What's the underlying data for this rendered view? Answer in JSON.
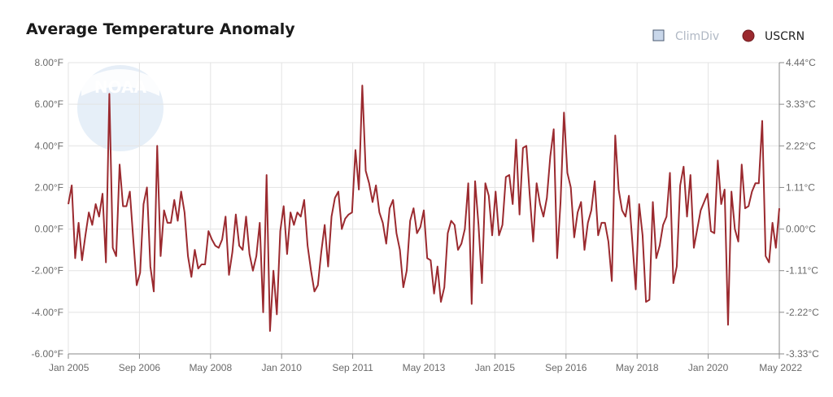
{
  "chart_data": {
    "type": "line",
    "title": "Average Temperature Anomaly",
    "legend": {
      "placement": "top-right",
      "items": [
        {
          "name": "ClimDiv",
          "color": "#c9d7ea",
          "border": "#4a5a70",
          "text_color": "#b0b8c4",
          "marker": "square"
        },
        {
          "name": "USCRN",
          "color": "#9b2a2f",
          "border": "#6e1c20",
          "text_color": "#222222",
          "marker": "circle"
        }
      ]
    },
    "x_ticks": [
      "Jan 2005",
      "Sep 2006",
      "May 2008",
      "Jan 2010",
      "Sep 2011",
      "May 2013",
      "Jan 2015",
      "Sep 2016",
      "May 2018",
      "Jan 2020",
      "May 2022"
    ],
    "x_range_months": [
      0,
      208
    ],
    "y_left": {
      "unit": "°F",
      "ticks": [
        "8.00°F",
        "6.00°F",
        "4.00°F",
        "2.00°F",
        "0.00°F",
        "-2.00°F",
        "-4.00°F",
        "-6.00°F"
      ],
      "range": [
        -6,
        8
      ]
    },
    "y_right": {
      "unit": "°C",
      "ticks": [
        "4.44°C",
        "3.33°C",
        "2.22°C",
        "1.11°C",
        "0.00°C",
        "-1.11°C",
        "-2.22°C",
        "-3.33°C"
      ]
    },
    "grid": true,
    "watermark": "NOAA",
    "series": [
      {
        "name": "USCRN",
        "color": "#9b2a2f",
        "start": "Jan 2005",
        "values": [
          1.2,
          2.1,
          -1.4,
          0.3,
          -1.5,
          -0.3,
          0.8,
          0.2,
          1.2,
          0.6,
          1.7,
          -1.6,
          6.5,
          -0.9,
          -1.3,
          3.1,
          1.1,
          1.1,
          1.8,
          -0.5,
          -2.7,
          -2.1,
          1.2,
          2.0,
          -1.8,
          -3.0,
          4.0,
          -1.3,
          0.9,
          0.3,
          0.3,
          1.4,
          0.4,
          1.8,
          0.8,
          -1.3,
          -2.3,
          -1.0,
          -1.9,
          -1.7,
          -1.7,
          -0.1,
          -0.5,
          -0.8,
          -0.9,
          -0.5,
          0.6,
          -2.2,
          -1.1,
          0.7,
          -0.8,
          -1.0,
          0.6,
          -1.2,
          -2.0,
          -1.3,
          0.3,
          -4.0,
          2.6,
          -4.9,
          -2.0,
          -4.1,
          -0.1,
          1.1,
          -1.2,
          0.8,
          0.2,
          0.8,
          0.6,
          1.4,
          -0.8,
          -2.0,
          -3.0,
          -2.7,
          -1.1,
          0.2,
          -1.8,
          0.6,
          1.5,
          1.8,
          0.0,
          0.5,
          0.7,
          0.8,
          3.8,
          1.9,
          6.9,
          2.8,
          2.2,
          1.3,
          2.1,
          0.8,
          0.3,
          -0.7,
          1.0,
          1.4,
          -0.2,
          -1.0,
          -2.8,
          -2.0,
          0.4,
          1.0,
          -0.2,
          0.1,
          0.9,
          -1.4,
          -1.5,
          -3.1,
          -1.8,
          -3.5,
          -2.8,
          -0.2,
          0.4,
          0.2,
          -1.0,
          -0.7,
          0.0,
          2.2,
          -3.6,
          2.3,
          0.2,
          -2.6,
          2.2,
          1.6,
          -0.3,
          1.8,
          -0.3,
          0.2,
          2.5,
          2.6,
          1.2,
          4.3,
          0.7,
          3.9,
          4.0,
          1.6,
          -0.6,
          2.2,
          1.2,
          0.6,
          1.5,
          3.5,
          4.8,
          -1.4,
          1.3,
          5.6,
          2.7,
          2.0,
          -0.4,
          0.8,
          1.3,
          -1.0,
          0.3,
          0.9,
          2.3,
          -0.3,
          0.3,
          0.3,
          -0.6,
          -2.5,
          4.5,
          1.9,
          0.9,
          0.6,
          1.6,
          -0.6,
          -2.9,
          1.2,
          -0.3,
          -3.5,
          -3.4,
          1.3,
          -1.4,
          -0.8,
          0.2,
          0.6,
          2.7,
          -2.6,
          -1.8,
          2.1,
          3.0,
          0.6,
          2.6,
          -0.9,
          0.0,
          0.9,
          1.3,
          1.7,
          -0.1,
          -0.2,
          3.3,
          1.2,
          1.9,
          -4.6,
          1.8,
          0.0,
          -0.6,
          3.1,
          1.0,
          1.1,
          1.8,
          2.2,
          2.2,
          5.2,
          -1.3,
          -1.6,
          0.3,
          -0.9,
          1.0
        ]
      }
    ]
  }
}
